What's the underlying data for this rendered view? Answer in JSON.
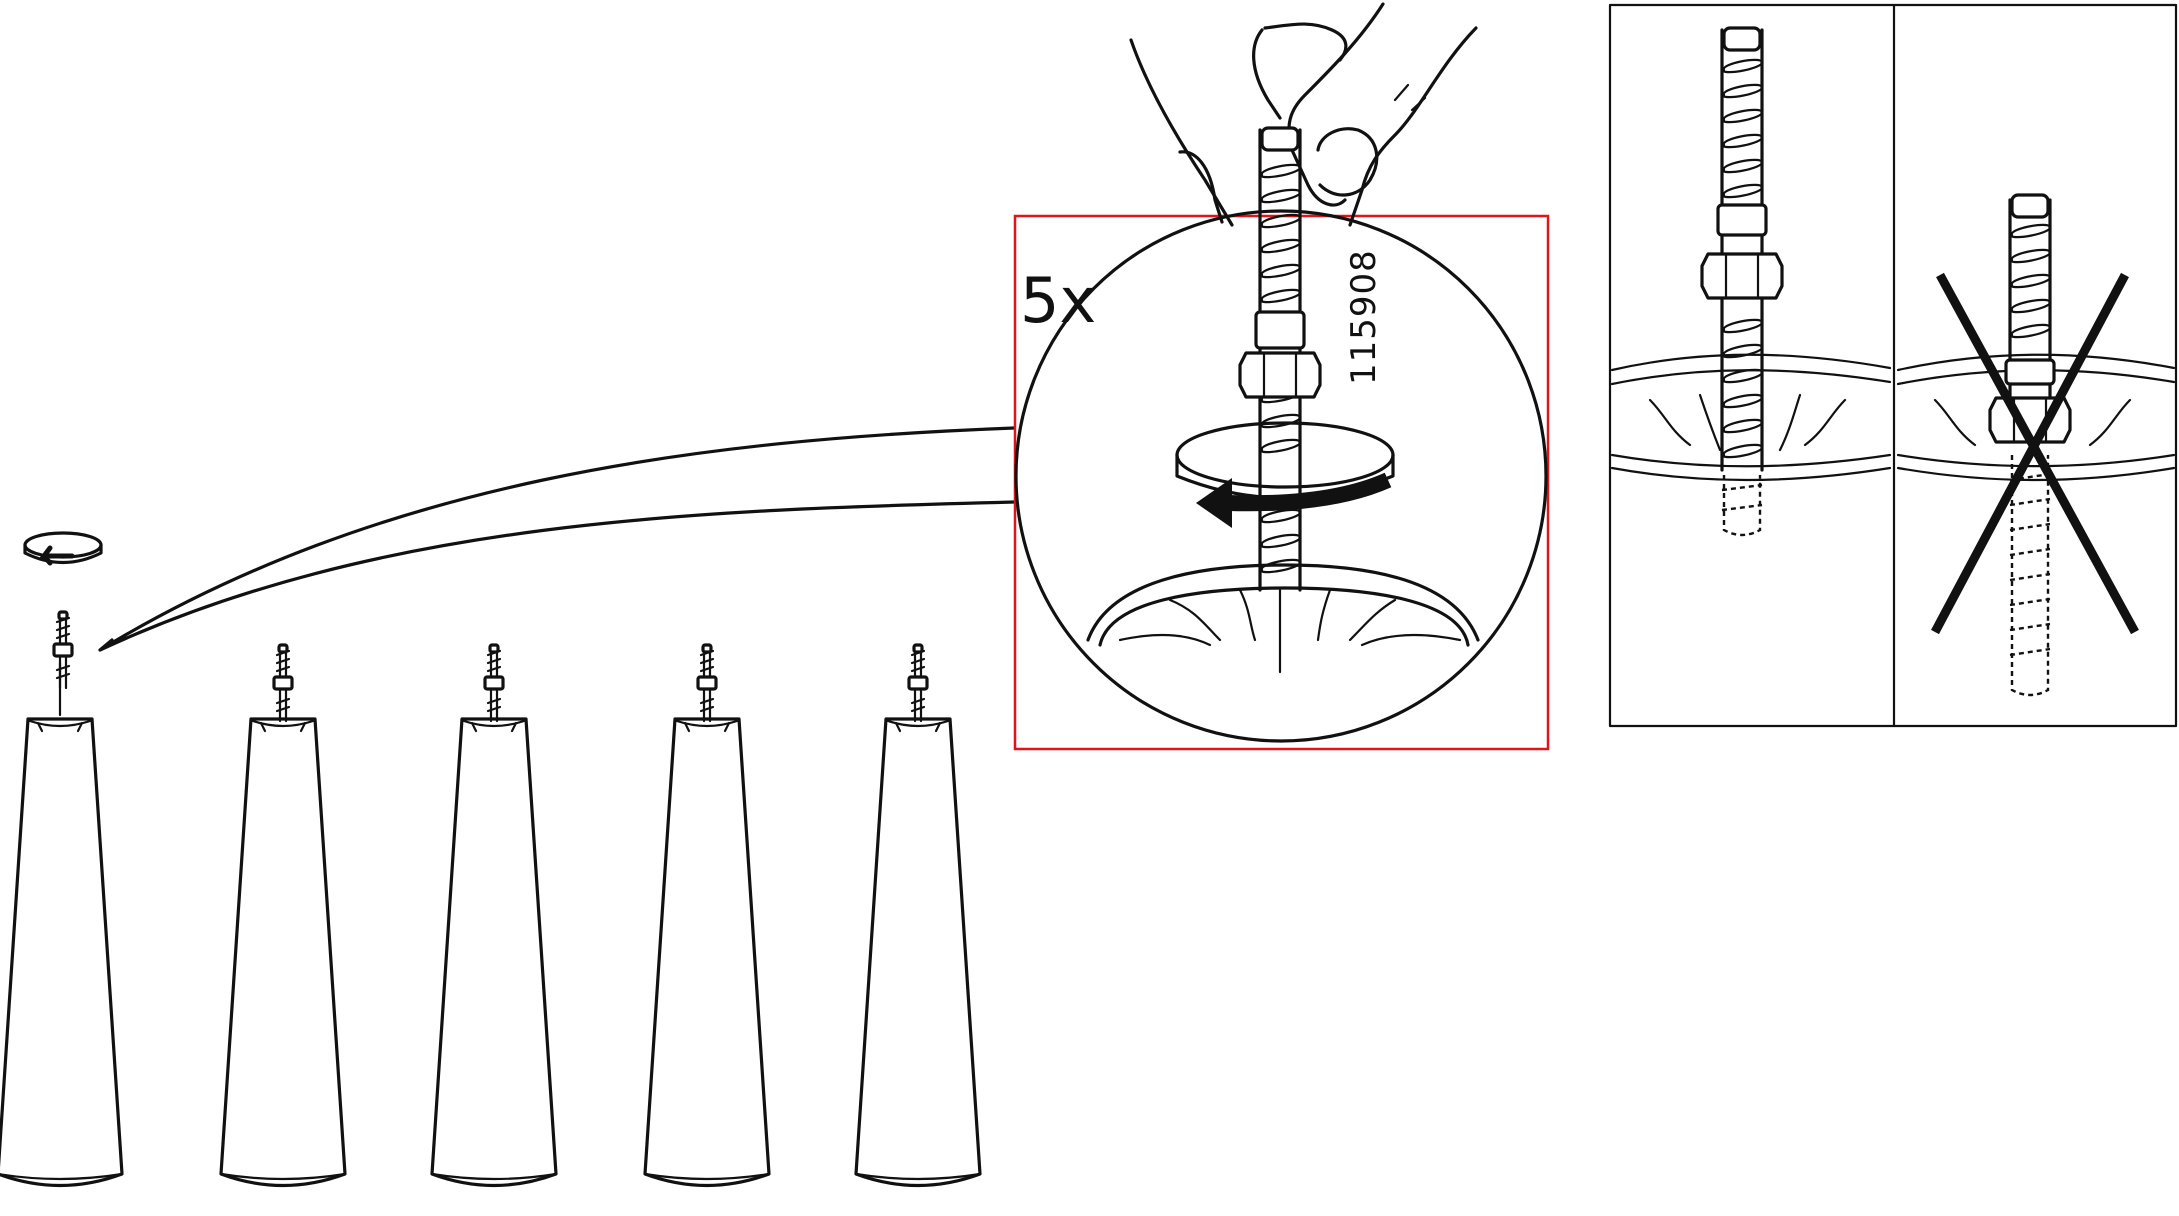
{
  "callout": {
    "quantity": "5x",
    "part_number": "115908",
    "frame_color": "#e0141b"
  },
  "scene": {
    "leg_count": 5,
    "icons": {
      "rotate": "counterclockwise-arrow-icon",
      "incorrect": "cross-out-icon"
    }
  },
  "ink_color": "#111111"
}
